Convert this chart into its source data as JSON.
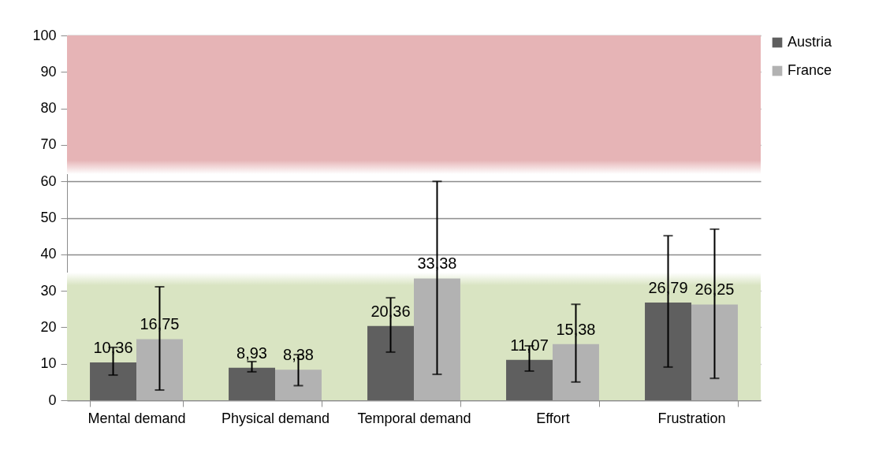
{
  "chart_data": {
    "type": "bar",
    "categories": [
      "Mental demand",
      "Physical demand",
      "Temporal demand",
      "Effort",
      "Frustration"
    ],
    "series": [
      {
        "name": "Austria",
        "color": "#5f5f5f",
        "values": [
          10.36,
          8.93,
          20.36,
          11.07,
          26.79
        ],
        "value_labels": [
          "10,36",
          "8,93",
          "20,36",
          "11,07",
          "26,79"
        ],
        "errors": [
          [
            6.9,
            14.5
          ],
          [
            7.8,
            10.6
          ],
          [
            13.2,
            28.1
          ],
          [
            8.0,
            14.9
          ],
          [
            9.1,
            45.1
          ]
        ]
      },
      {
        "name": "France",
        "color": "#b2b2b2",
        "values": [
          16.75,
          8.38,
          33.38,
          15.38,
          26.25
        ],
        "value_labels": [
          "16,75",
          "8,38",
          "33,38",
          "15,38",
          "26,25"
        ],
        "errors": [
          [
            2.8,
            31.1
          ],
          [
            4.0,
            12.5
          ],
          [
            7.1,
            60.0
          ],
          [
            5.0,
            26.3
          ],
          [
            6.0,
            46.9
          ]
        ]
      }
    ],
    "ylim": [
      0,
      100
    ],
    "yticks": [
      0,
      10,
      20,
      30,
      40,
      50,
      60,
      70,
      80,
      90,
      100
    ],
    "bands": [
      {
        "axis": "y",
        "from": 62,
        "to": 100,
        "color": "#e6b4b6"
      },
      {
        "axis": "y",
        "from": 0,
        "to": 35,
        "color": "#d9e4c2"
      }
    ],
    "grid": "y",
    "legend": "right"
  }
}
